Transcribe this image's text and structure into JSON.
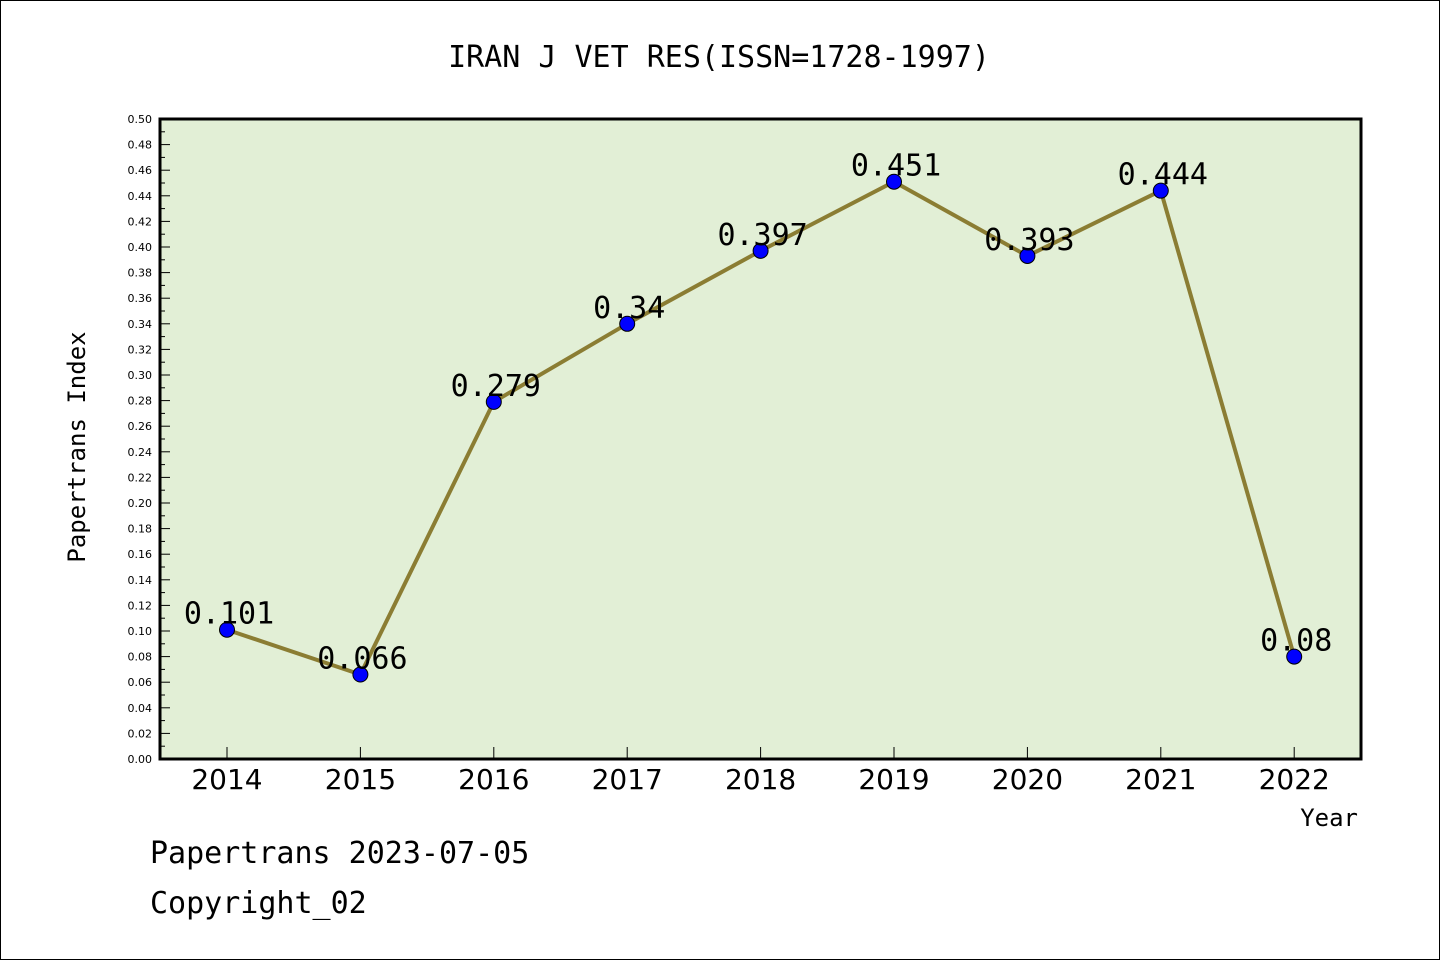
{
  "chart_data": {
    "type": "line",
    "title": "IRAN J VET RES(ISSN=1728-1997)",
    "xlabel": "Year",
    "ylabel": "Papertrans Index",
    "categories": [
      "2014",
      "2015",
      "2016",
      "2017",
      "2018",
      "2019",
      "2020",
      "2021",
      "2022"
    ],
    "series": [
      {
        "values": [
          0.101,
          0.066,
          0.279,
          0.34,
          0.397,
          0.451,
          0.393,
          0.444,
          0.08
        ],
        "data_labels": [
          "0.101",
          "0.066",
          "0.279",
          "0.34",
          "0.397",
          "0.451",
          "0.393",
          "0.444",
          "0.08"
        ],
        "line_color": "#8b7d33",
        "marker_color": "#0000ff"
      }
    ],
    "ylim": [
      0,
      0.5
    ],
    "y_ticks": [
      "0.00",
      "0.02",
      "0.04",
      "0.06",
      "0.08",
      "0.10",
      "0.12",
      "0.14",
      "0.16",
      "0.18",
      "0.20",
      "0.22",
      "0.24",
      "0.26",
      "0.28",
      "0.30",
      "0.32",
      "0.34",
      "0.36",
      "0.38",
      "0.40",
      "0.42",
      "0.44",
      "0.46",
      "0.48",
      "0.50"
    ],
    "grid": false,
    "plot_background": "#e2efd6"
  },
  "footer": {
    "line1": "Papertrans 2023-07-05",
    "line2": "Copyright_02"
  }
}
